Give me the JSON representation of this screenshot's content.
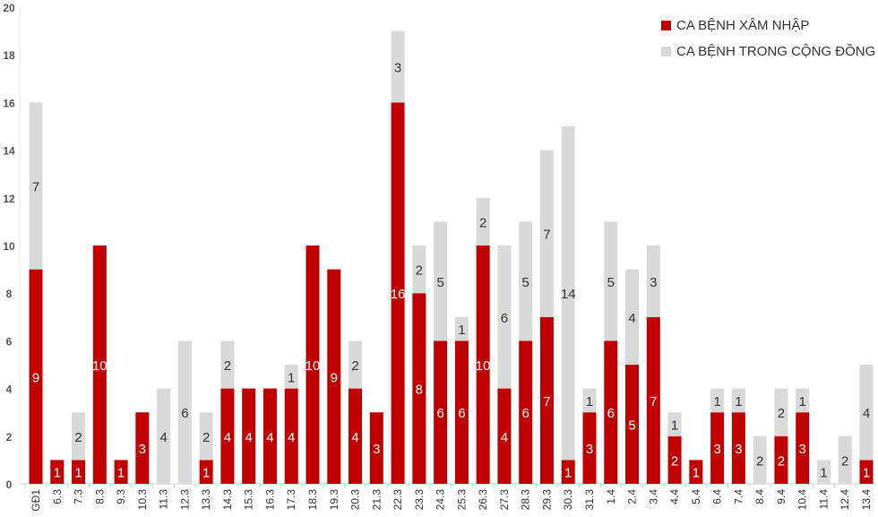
{
  "chart_data": {
    "type": "bar",
    "stacked": true,
    "title": "",
    "xlabel": "",
    "ylabel": "",
    "ylim": [
      0,
      20
    ],
    "yticks": [
      0,
      2,
      4,
      6,
      8,
      10,
      12,
      14,
      16,
      18,
      20
    ],
    "legend_position": "top-right",
    "categories": [
      "GĐ1",
      "6.3",
      "7.3",
      "8.3",
      "9.3",
      "10.3",
      "11.3",
      "12.3",
      "13.3",
      "14.3",
      "15.3",
      "16.3",
      "17.3",
      "18.3",
      "19.3",
      "20.3",
      "21.3",
      "22.3",
      "23.3",
      "24.3",
      "25.3",
      "26.3",
      "27.3",
      "28.3",
      "29.3",
      "30.3",
      "31.3",
      "1.4",
      "2.4",
      "3.4",
      "4.4",
      "5.4",
      "6.4",
      "7.4",
      "8.4",
      "9.4",
      "10.4",
      "11.4",
      "12.4",
      "13.4"
    ],
    "series": [
      {
        "name": "CA BỆNH XÂM NHẬP",
        "color": "#C00000",
        "values": [
          9,
          1,
          1,
          10,
          1,
          3,
          0,
          0,
          1,
          4,
          4,
          4,
          4,
          10,
          9,
          4,
          3,
          16,
          8,
          6,
          6,
          10,
          4,
          6,
          7,
          1,
          3,
          6,
          5,
          7,
          2,
          1,
          3,
          3,
          0,
          2,
          3,
          0,
          0,
          1
        ]
      },
      {
        "name": "CA BỆNH TRONG CỘNG ĐỒNG",
        "color": "#D9D9D9",
        "values": [
          7,
          0,
          2,
          0,
          0,
          0,
          4,
          6,
          2,
          2,
          0,
          0,
          1,
          0,
          0,
          2,
          0,
          3,
          2,
          5,
          1,
          2,
          6,
          5,
          7,
          14,
          1,
          5,
          4,
          3,
          1,
          0,
          1,
          1,
          2,
          2,
          1,
          1,
          2,
          4
        ]
      }
    ]
  }
}
